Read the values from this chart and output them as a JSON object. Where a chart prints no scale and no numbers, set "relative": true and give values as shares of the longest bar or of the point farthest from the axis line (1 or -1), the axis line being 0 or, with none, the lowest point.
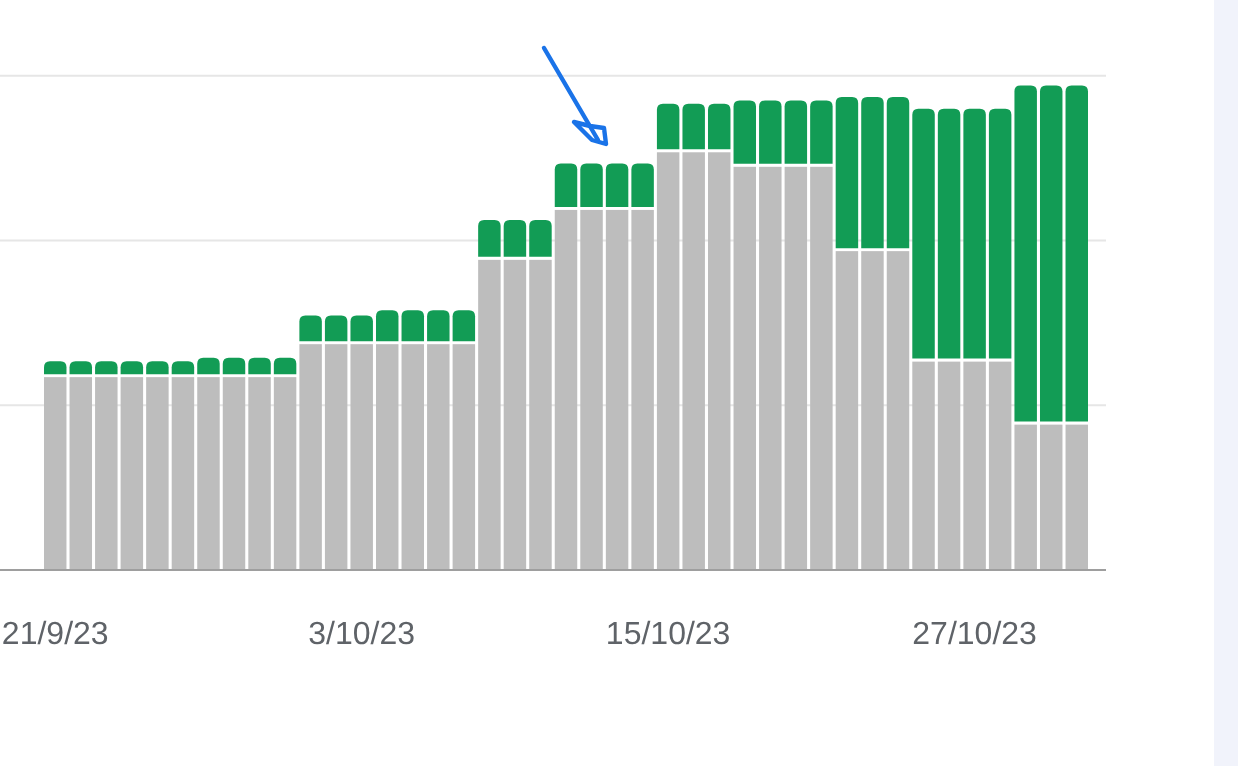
{
  "chart_data": {
    "type": "bar",
    "stacked": true,
    "relative": true,
    "ref_lines": [
      {
        "axis": "y",
        "value": 0.34,
        "color": "#e6e6e6"
      },
      {
        "axis": "y",
        "value": 0.68,
        "color": "#e6e6e6"
      },
      {
        "axis": "y",
        "value": 1.02,
        "color": "#e6e6e6"
      }
    ],
    "categories": [
      "21/9/23",
      null,
      null,
      null,
      null,
      null,
      null,
      null,
      null,
      null,
      null,
      null,
      "3/10/23",
      null,
      null,
      null,
      null,
      null,
      null,
      null,
      null,
      null,
      null,
      null,
      "15/10/23",
      null,
      null,
      null,
      null,
      null,
      null,
      null,
      null,
      null,
      null,
      null,
      "27/10/23",
      null,
      null,
      null,
      null
    ],
    "series": [
      {
        "color": "#bdbdbd",
        "values": [
          0.398,
          0.398,
          0.398,
          0.398,
          0.398,
          0.398,
          0.398,
          0.398,
          0.398,
          0.398,
          0.466,
          0.466,
          0.466,
          0.466,
          0.466,
          0.466,
          0.466,
          0.64,
          0.64,
          0.64,
          0.743,
          0.743,
          0.743,
          0.743,
          0.862,
          0.862,
          0.862,
          0.832,
          0.832,
          0.832,
          0.832,
          0.658,
          0.658,
          0.658,
          0.43,
          0.43,
          0.43,
          0.43,
          0.3,
          0.3,
          0.3
        ]
      },
      {
        "color": "#129c55",
        "values": [
          0.033,
          0.033,
          0.033,
          0.033,
          0.033,
          0.033,
          0.04,
          0.04,
          0.04,
          0.04,
          0.059,
          0.059,
          0.059,
          0.07,
          0.07,
          0.07,
          0.07,
          0.082,
          0.082,
          0.082,
          0.096,
          0.096,
          0.096,
          0.096,
          0.1,
          0.1,
          0.1,
          0.137,
          0.137,
          0.137,
          0.137,
          0.318,
          0.318,
          0.318,
          0.522,
          0.522,
          0.522,
          0.522,
          0.7,
          0.7,
          0.7
        ]
      }
    ]
  }
}
